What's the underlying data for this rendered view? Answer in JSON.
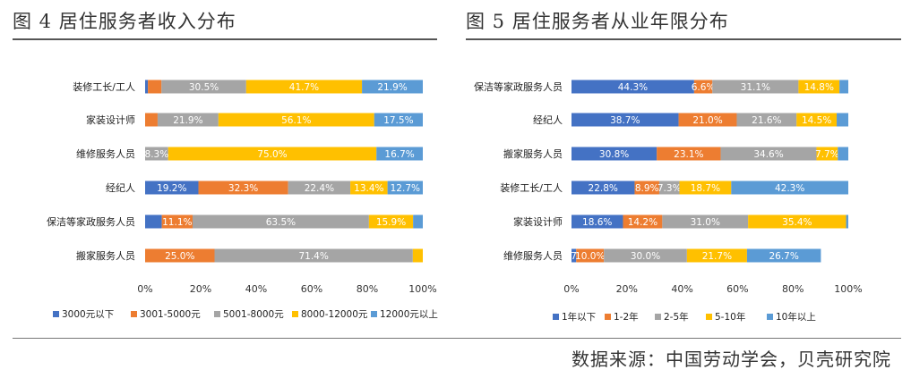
{
  "headings": {
    "left": "图 4 居住服务者收入分布",
    "right": "图 5 居住服务者从业年限分布",
    "source": "数据来源：中国劳动学会，贝壳研究院"
  },
  "chart_data": [
    {
      "type": "bar",
      "orientation": "horizontal",
      "stacked": true,
      "title": "图 4 居住服务者收入分布",
      "categories": [
        "装修工长/工人",
        "家装设计师",
        "维修服务人员",
        "经纪人",
        "保洁等家政服务人员",
        "搬家服务人员"
      ],
      "xlim": [
        0,
        100
      ],
      "x_ticks": [
        "0%",
        "20%",
        "40%",
        "60%",
        "80%",
        "100%"
      ],
      "legend_position": "bottom",
      "series": [
        {
          "name": "3000元以下",
          "color": "#4472C4",
          "values": [
            1.0,
            0.0,
            0.0,
            19.2,
            6.0,
            0.0
          ],
          "labels": [
            "",
            "",
            "",
            "19.2%",
            "",
            ""
          ]
        },
        {
          "name": "3001-5000元",
          "color": "#ED7D31",
          "values": [
            4.9,
            4.5,
            0.0,
            32.3,
            11.1,
            25.0
          ],
          "labels": [
            "",
            "",
            "",
            "32.3%",
            "11.1%",
            "25.0%"
          ]
        },
        {
          "name": "5001-8000元",
          "color": "#A5A5A5",
          "values": [
            30.5,
            21.9,
            8.3,
            22.4,
            63.5,
            71.4
          ],
          "labels": [
            "30.5%",
            "21.9%",
            "8.3%",
            "22.4%",
            "63.5%",
            "71.4%"
          ]
        },
        {
          "name": "8000-12000元",
          "color": "#FFC000",
          "values": [
            41.7,
            56.1,
            75.0,
            13.4,
            15.9,
            3.6
          ],
          "labels": [
            "41.7%",
            "56.1%",
            "75.0%",
            "13.4%",
            "15.9%",
            ""
          ]
        },
        {
          "name": "12000元以上",
          "color": "#5B9BD5",
          "values": [
            21.9,
            17.5,
            16.7,
            12.7,
            3.5,
            0.0
          ],
          "labels": [
            "21.9%",
            "17.5%",
            "16.7%",
            "12.7%",
            "",
            ""
          ]
        }
      ]
    },
    {
      "type": "bar",
      "orientation": "horizontal",
      "stacked": true,
      "title": "图 5 居住服务者从业年限分布",
      "categories": [
        "保洁等家政服务人员",
        "经纪人",
        "搬家服务人员",
        "装修工长/工人",
        "家装设计师",
        "维修服务人员"
      ],
      "xlim": [
        0,
        100
      ],
      "x_ticks": [
        "0%",
        "20%",
        "40%",
        "60%",
        "80%",
        "100%"
      ],
      "legend_position": "bottom",
      "series": [
        {
          "name": "1年以下",
          "color": "#4472C4",
          "values": [
            44.3,
            38.7,
            30.8,
            22.8,
            18.6,
            1.7
          ],
          "labels": [
            "44.3%",
            "38.7%",
            "30.8%",
            "22.8%",
            "18.6%",
            "1.7%"
          ]
        },
        {
          "name": "1-2年",
          "color": "#ED7D31",
          "values": [
            6.6,
            21.0,
            23.1,
            8.9,
            14.2,
            10.0
          ],
          "labels": [
            "6.6%",
            "21.0%",
            "23.1%",
            "8.9%",
            "14.2%",
            "10.0%"
          ]
        },
        {
          "name": "2-5年",
          "color": "#A5A5A5",
          "values": [
            31.1,
            21.6,
            34.6,
            7.3,
            31.0,
            30.0
          ],
          "labels": [
            "31.1%",
            "21.6%",
            "34.6%",
            "7.3%",
            "31.0%",
            "30.0%"
          ]
        },
        {
          "name": "5-10年",
          "color": "#FFC000",
          "values": [
            14.8,
            14.5,
            7.7,
            18.7,
            35.4,
            21.7
          ],
          "labels": [
            "14.8%",
            "14.5%",
            "7.7%",
            "18.7%",
            "35.4%",
            "21.7%"
          ]
        },
        {
          "name": "10年以上",
          "color": "#5B9BD5",
          "values": [
            3.2,
            4.2,
            3.8,
            42.3,
            0.8,
            26.7
          ],
          "labels": [
            "",
            "",
            "",
            "42.3%",
            "",
            "26.7%"
          ]
        }
      ]
    }
  ]
}
